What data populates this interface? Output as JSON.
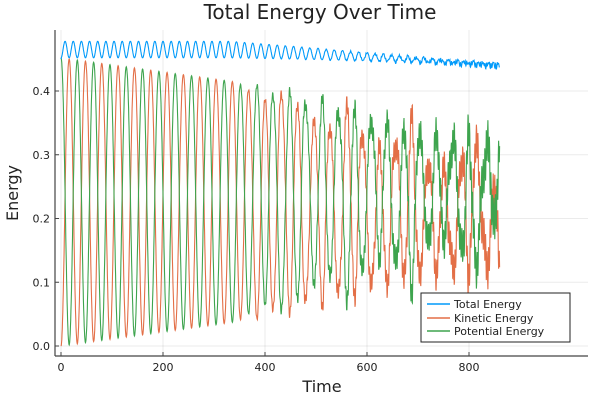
{
  "chart_data": {
    "type": "line",
    "title": "Total Energy Over Time",
    "xlabel": "Time",
    "ylabel": "Energy",
    "xlim": [
      -22,
      890
    ],
    "ylim": [
      -0.015,
      0.505
    ],
    "xticks": [
      0,
      200,
      400,
      600,
      800
    ],
    "xtick_labels": [
      "0",
      "200",
      "400",
      "600",
      "800"
    ],
    "yticks": [
      0.0,
      0.1,
      0.2,
      0.3,
      0.4
    ],
    "ytick_labels": [
      "0.0",
      "0.1",
      "0.2",
      "0.3",
      "0.4"
    ],
    "grid": true,
    "legend_position": "bottom-right",
    "x_range": [
      0,
      860
    ],
    "oscillation_period": 32,
    "series": [
      {
        "name": "Total Energy",
        "color": "#009AFA",
        "start": 0.45,
        "mean_early": 0.465,
        "mean_late": 0.445,
        "swing": 0.015
      },
      {
        "name": "Kinetic Energy",
        "color": "#E36F47",
        "start": 0.0,
        "max": 0.48
      },
      {
        "name": "Potential Energy",
        "color": "#3EA44E",
        "start": 0.45,
        "max": 0.48
      }
    ]
  }
}
